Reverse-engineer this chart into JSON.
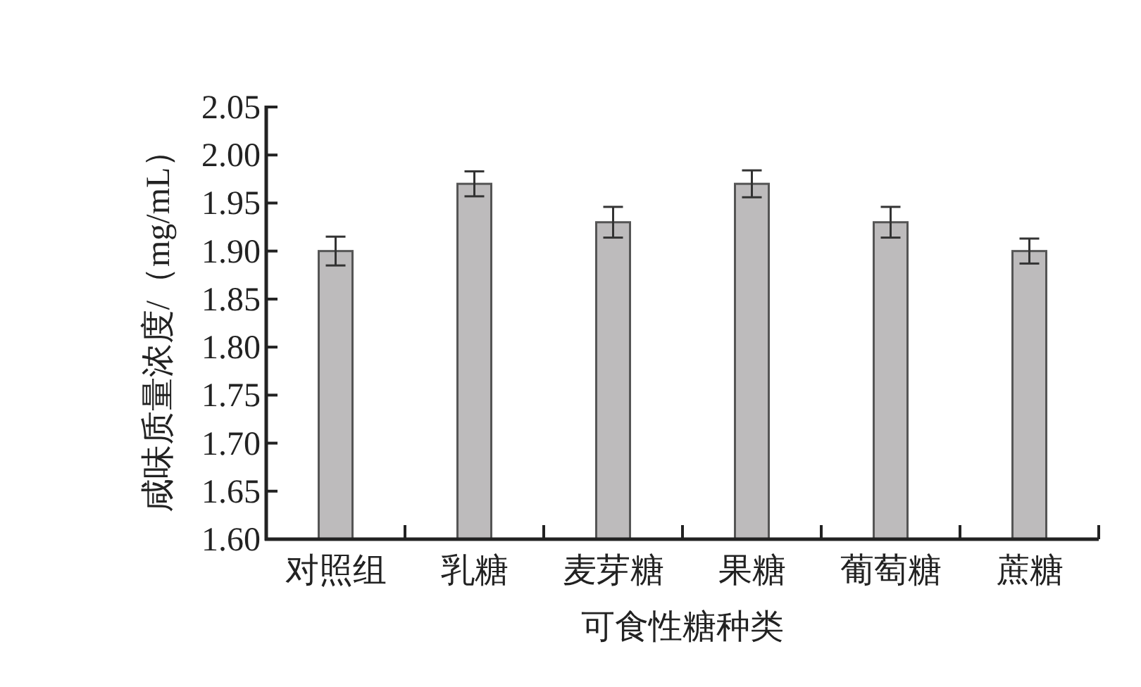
{
  "chart_data": {
    "type": "bar",
    "xlabel": "可食性糖种类",
    "ylabel": "咸味质量浓度/（mg/mL）",
    "categories": [
      "对照组",
      "乳糖",
      "麦芽糖",
      "果糖",
      "葡萄糖",
      "蔗糖"
    ],
    "values": [
      1.9,
      1.97,
      1.93,
      1.97,
      1.93,
      1.9
    ],
    "errors": [
      0.015,
      0.013,
      0.016,
      0.014,
      0.016,
      0.013
    ],
    "color": "#bdbbbc",
    "ylim": [
      1.6,
      2.05
    ],
    "yticks": [
      {
        "value": 1.6,
        "label": "1.60"
      },
      {
        "value": 1.65,
        "label": "1.65"
      },
      {
        "value": 1.7,
        "label": "1.70"
      },
      {
        "value": 1.75,
        "label": "1.75"
      },
      {
        "value": 1.8,
        "label": "1.80"
      },
      {
        "value": 1.85,
        "label": "1.85"
      },
      {
        "value": 1.9,
        "label": "1.90"
      },
      {
        "value": 1.95,
        "label": "1.95"
      },
      {
        "value": 2.0,
        "label": "2.00"
      },
      {
        "value": 2.05,
        "label": "2.05"
      }
    ],
    "grid": false
  }
}
